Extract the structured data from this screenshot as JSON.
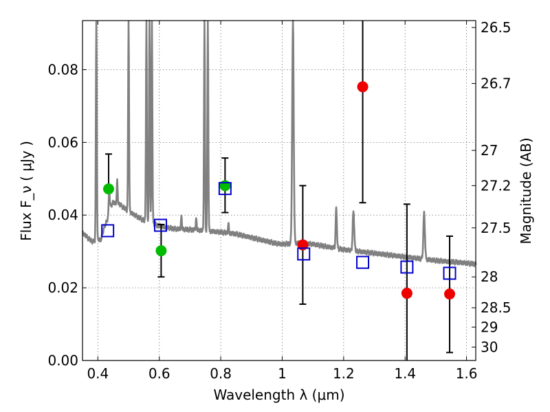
{
  "chart_data": {
    "type": "scatter",
    "title": "",
    "xlabel": "Wavelength  λ (μm)",
    "ylabel": "Flux  F_ν  ( μJy )",
    "ylabel_right": "Magnitude (AB)",
    "xlim": [
      0.35,
      1.63
    ],
    "ylim": [
      0.0,
      0.0935
    ],
    "grid": true,
    "x_ticks": [
      0.4,
      0.6,
      0.8,
      1.0,
      1.2,
      1.4,
      1.6
    ],
    "x_tick_labels": [
      "0.4",
      "0.6",
      "0.8",
      "1",
      "1.2",
      "1.4",
      "1.6"
    ],
    "y_ticks": [
      0.0,
      0.02,
      0.04,
      0.06,
      0.08
    ],
    "y_tick_labels": [
      "0.00",
      "0.02",
      "0.04",
      "0.06",
      "0.08"
    ],
    "right_ticks": [
      {
        "label": "26.5",
        "flux": 0.0916
      },
      {
        "label": "26.7",
        "flux": 0.0762
      },
      {
        "label": "27",
        "flux": 0.0578
      },
      {
        "label": "27.2",
        "flux": 0.0481
      },
      {
        "label": "27.5",
        "flux": 0.0365
      },
      {
        "label": "28",
        "flux": 0.023
      },
      {
        "label": "28.5",
        "flux": 0.0145
      },
      {
        "label": "29",
        "flux": 0.0092
      },
      {
        "label": "30",
        "flux": 0.0037
      }
    ],
    "series": [
      {
        "color": "#00bb00",
        "marker": "circle",
        "points": [
          {
            "x": 0.435,
            "y": 0.0472,
            "yerr_low": 0.0472,
            "yerr_high": 0.0568
          },
          {
            "x": 0.606,
            "y": 0.0302,
            "yerr_low": 0.023,
            "yerr_high": 0.0374
          },
          {
            "x": 0.814,
            "y": 0.0481,
            "yerr_low": 0.0407,
            "yerr_high": 0.0557
          }
        ]
      },
      {
        "color": "#ee0000",
        "marker": "circle",
        "points": [
          {
            "x": 1.067,
            "y": 0.0318,
            "yerr_low": 0.0155,
            "yerr_high": 0.0481
          },
          {
            "x": 1.262,
            "y": 0.0753,
            "yerr_low": 0.0434,
            "yerr_high": 0.0935
          },
          {
            "x": 1.406,
            "y": 0.0185,
            "yerr_low": 0.0,
            "yerr_high": 0.043
          },
          {
            "x": 1.545,
            "y": 0.0183,
            "yerr_low": 0.0022,
            "yerr_high": 0.0342
          }
        ]
      },
      {
        "color": "#0000cc",
        "marker": "open-square",
        "points": [
          {
            "x": 0.432,
            "y": 0.0357
          },
          {
            "x": 0.604,
            "y": 0.0372
          },
          {
            "x": 0.814,
            "y": 0.0473
          },
          {
            "x": 1.07,
            "y": 0.0293
          },
          {
            "x": 1.262,
            "y": 0.027
          },
          {
            "x": 1.406,
            "y": 0.0257
          },
          {
            "x": 1.545,
            "y": 0.024
          }
        ]
      }
    ],
    "spectrum": {
      "color": "#808080",
      "continuum": [
        [
          0.35,
          0.0352
        ],
        [
          0.37,
          0.0335
        ],
        [
          0.385,
          0.0326
        ],
        [
          0.4,
          0.0334
        ],
        [
          0.41,
          0.0332
        ],
        [
          0.42,
          0.0365
        ],
        [
          0.43,
          0.0385
        ],
        [
          0.44,
          0.0422
        ],
        [
          0.45,
          0.0435
        ],
        [
          0.47,
          0.043
        ],
        [
          0.5,
          0.041
        ],
        [
          0.55,
          0.0385
        ],
        [
          0.6,
          0.037
        ],
        [
          0.65,
          0.0362
        ],
        [
          0.7,
          0.036
        ],
        [
          0.75,
          0.0357
        ],
        [
          0.8,
          0.0353
        ],
        [
          0.85,
          0.0348
        ],
        [
          0.9,
          0.0338
        ],
        [
          0.95,
          0.0328
        ],
        [
          0.98,
          0.0322
        ],
        [
          1.0,
          0.032
        ],
        [
          1.05,
          0.0323
        ],
        [
          1.1,
          0.032
        ],
        [
          1.2,
          0.0305
        ],
        [
          1.3,
          0.0295
        ],
        [
          1.4,
          0.0285
        ],
        [
          1.5,
          0.0275
        ],
        [
          1.6,
          0.0268
        ],
        [
          1.63,
          0.0265
        ]
      ],
      "emission_lines": [
        {
          "x": 0.395,
          "peak": 0.0935,
          "width": 0.003
        },
        {
          "x": 0.437,
          "peak": 0.047,
          "width": 0.003
        },
        {
          "x": 0.463,
          "peak": 0.0495,
          "width": 0.003
        },
        {
          "x": 0.5,
          "peak": 0.0935,
          "width": 0.003
        },
        {
          "x": 0.558,
          "peak": 0.0935,
          "width": 0.003
        },
        {
          "x": 0.568,
          "peak": 0.0935,
          "width": 0.003
        },
        {
          "x": 0.576,
          "peak": 0.0935,
          "width": 0.003
        },
        {
          "x": 0.672,
          "peak": 0.0395,
          "width": 0.003
        },
        {
          "x": 0.72,
          "peak": 0.039,
          "width": 0.003
        },
        {
          "x": 0.747,
          "peak": 0.0935,
          "width": 0.003
        },
        {
          "x": 0.758,
          "peak": 0.0935,
          "width": 0.003
        },
        {
          "x": 0.825,
          "peak": 0.0375,
          "width": 0.003
        },
        {
          "x": 1.035,
          "peak": 0.0935,
          "width": 0.005
        },
        {
          "x": 1.176,
          "peak": 0.042,
          "width": 0.004
        },
        {
          "x": 1.232,
          "peak": 0.041,
          "width": 0.005
        },
        {
          "x": 1.462,
          "peak": 0.0405,
          "width": 0.005
        }
      ]
    }
  }
}
